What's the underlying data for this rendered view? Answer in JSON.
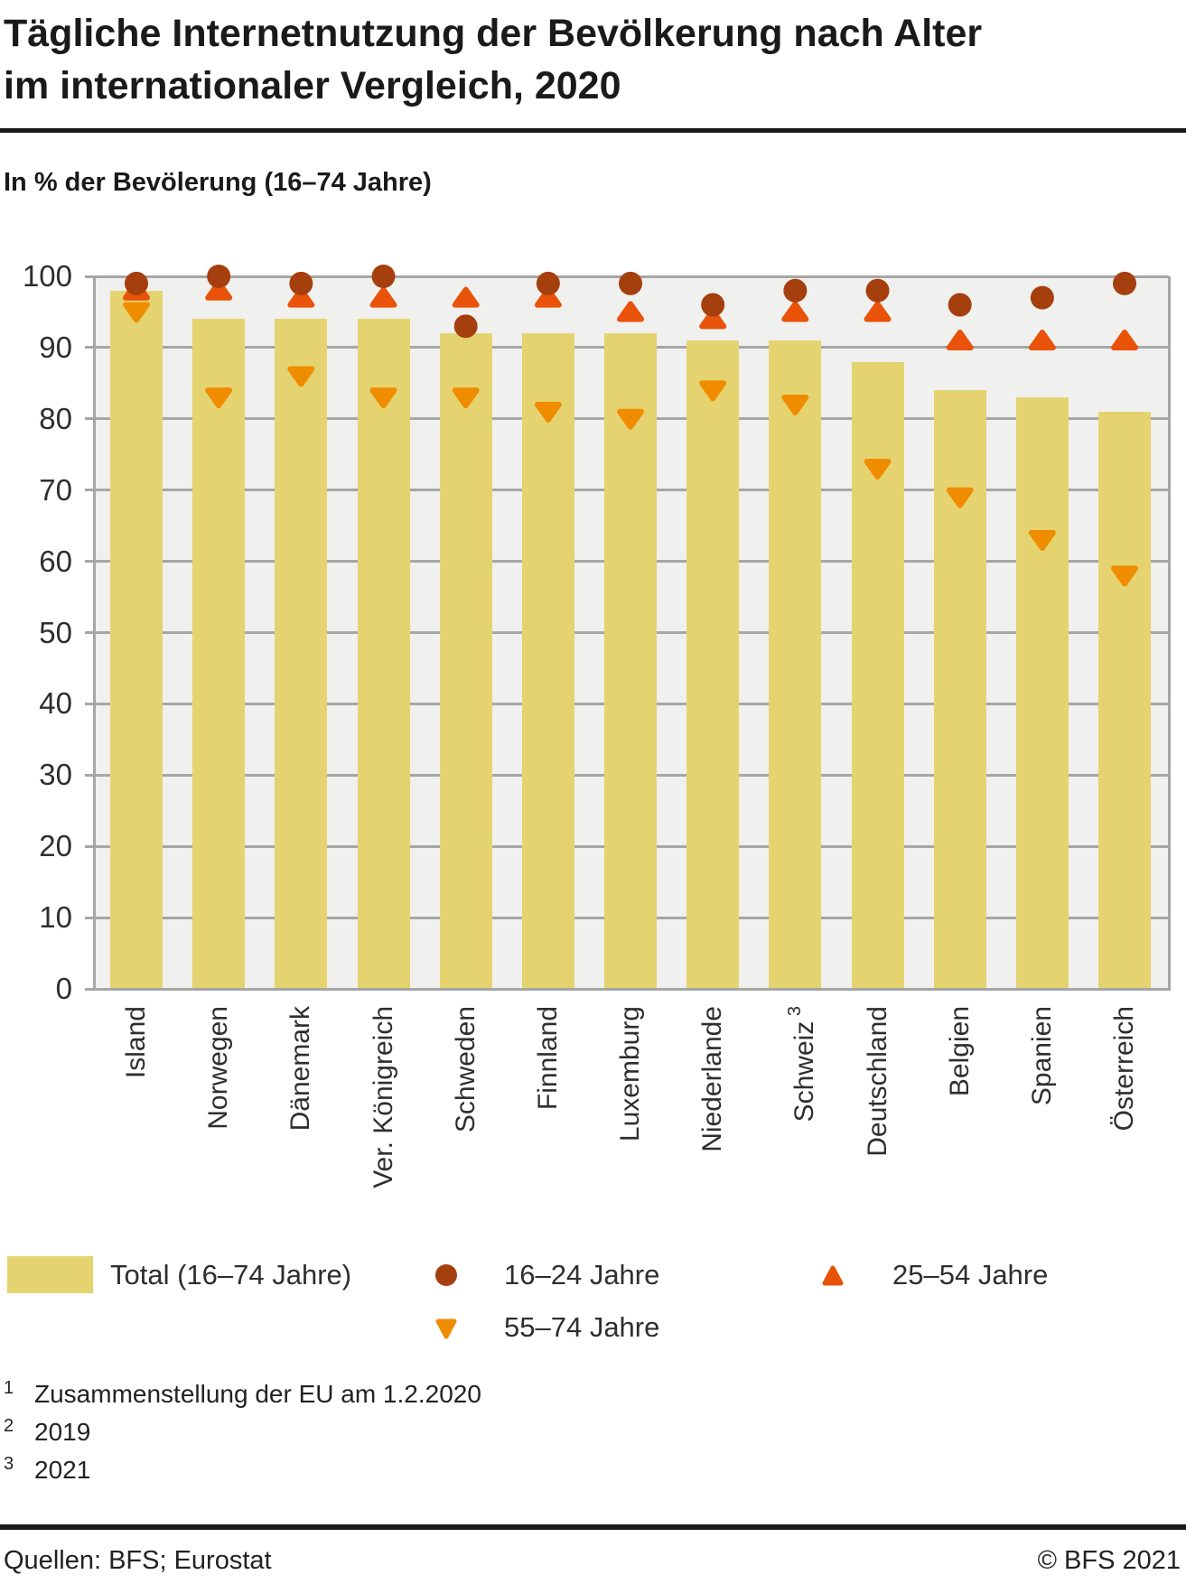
{
  "header": {
    "title_line1": "Tägliche Internetnutzung der Bevölkerung nach Alter",
    "title_line2": "im internationaler Vergleich, 2020",
    "subtitle": "In % der Bevölerung (16–74 Jahre)"
  },
  "chart_data": {
    "type": "bar",
    "title": "Tägliche Internetnutzung der Bevölkerung nach Alter im internationaler Vergleich, 2020",
    "ylabel": "In % der Bevölerung (16–74 Jahre)",
    "ylim": [
      0,
      100
    ],
    "yticks": [
      0,
      10,
      20,
      30,
      40,
      50,
      60,
      70,
      80,
      90,
      100
    ],
    "grid": true,
    "legend_position": "bottom",
    "categories": [
      "Island",
      "Norwegen",
      "Dänemark",
      "Ver. Königreich",
      "Schweden",
      "Finnland",
      "Luxemburg",
      "Niederlande",
      "Schweiz",
      "Deutschland",
      "Belgien",
      "Spanien",
      "Österreich"
    ],
    "category_footnotes": [
      "",
      "",
      "",
      "",
      "",
      "",
      "",
      "",
      "3",
      "",
      "",
      "",
      ""
    ],
    "series": [
      {
        "name": "Total (16–74 Jahre)",
        "type": "bar",
        "marker": "bar",
        "color": "#e5d370",
        "values": [
          98,
          94,
          94,
          94,
          92,
          92,
          92,
          91,
          91,
          88,
          84,
          83,
          81
        ]
      },
      {
        "name": "16–24 Jahre",
        "type": "scatter",
        "marker": "circle",
        "color": "#a63f0e",
        "values": [
          99,
          100,
          99,
          100,
          93,
          99,
          99,
          96,
          98,
          98,
          96,
          97,
          99
        ]
      },
      {
        "name": "25–54 Jahre",
        "type": "scatter",
        "marker": "triangle-up",
        "color": "#e95209",
        "values": [
          98,
          98,
          97,
          97,
          97,
          97,
          95,
          94,
          95,
          95,
          91,
          91,
          91
        ]
      },
      {
        "name": "55–74 Jahre",
        "type": "scatter",
        "marker": "triangle-down",
        "color": "#f08c00",
        "values": [
          95,
          83,
          86,
          83,
          83,
          81,
          80,
          84,
          82,
          73,
          69,
          63,
          58
        ]
      }
    ],
    "colors": {
      "plot_bg": "#f0f0ee",
      "grid": "#a6a6a5",
      "axis_text": "#2e2e2e"
    }
  },
  "footnotes": [
    {
      "sup": "1",
      "text": "Zusammenstellung der EU am 1.2.2020"
    },
    {
      "sup": "2",
      "text": "2019"
    },
    {
      "sup": "3",
      "text": "2021"
    }
  ],
  "footer": {
    "source": "Quellen: BFS; Eurostat",
    "copyright": "© BFS 2021"
  }
}
